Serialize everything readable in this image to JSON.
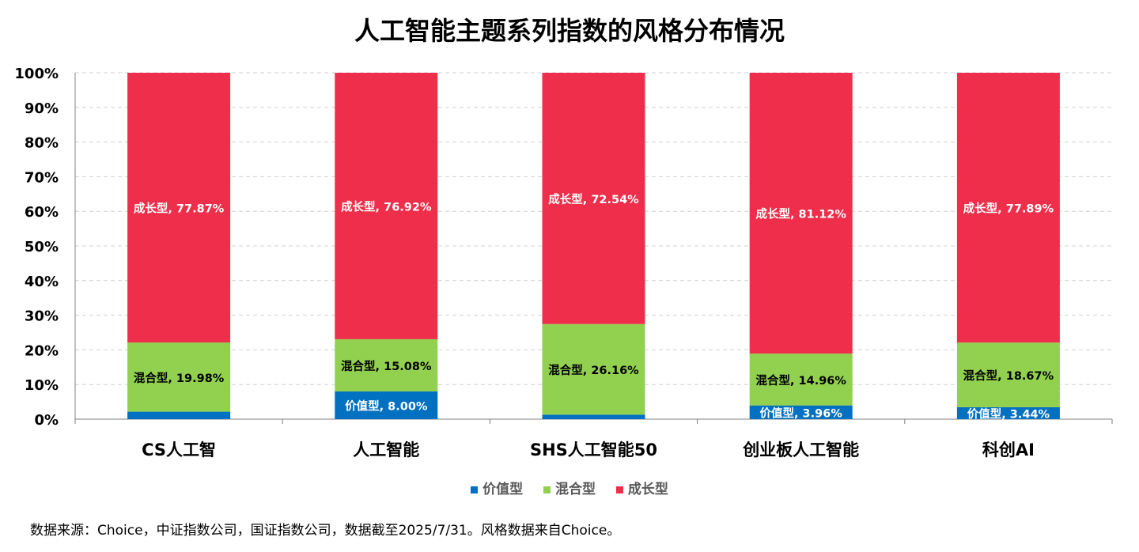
{
  "chart_data": {
    "type": "bar",
    "stacked": true,
    "title": "人工智能主题系列指数的风格分布情况",
    "categories": [
      "CS人工智",
      "人工智能",
      "SHS人工智能50",
      "创业板人工智能",
      "科创AI"
    ],
    "series": [
      {
        "name": "价值型",
        "color": "#0070C0",
        "values": [
          2.15,
          8.0,
          1.3,
          3.96,
          3.44
        ],
        "labels": [
          "",
          "价值型, 8.00%",
          "",
          "价值型, 3.96%",
          "价值型, 3.44%"
        ]
      },
      {
        "name": "混合型",
        "color": "#92D050",
        "values": [
          19.98,
          15.08,
          26.16,
          14.96,
          18.67
        ],
        "labels": [
          "混合型, 19.98%",
          "混合型, 15.08%",
          "混合型, 26.16%",
          "混合型, 14.96%",
          "混合型, 18.67%"
        ]
      },
      {
        "name": "成长型",
        "color": "#EE2E4A",
        "values": [
          77.87,
          76.92,
          72.54,
          81.12,
          77.89
        ],
        "labels": [
          "成长型, 77.87%",
          "成长型, 76.92%",
          "成长型, 72.54%",
          "成长型, 81.12%",
          "成长型, 77.89%"
        ]
      }
    ],
    "yticks": [
      "0%",
      "10%",
      "20%",
      "30%",
      "40%",
      "50%",
      "60%",
      "70%",
      "80%",
      "90%",
      "100%"
    ],
    "ylim": [
      0,
      100
    ],
    "grid": true,
    "legend": "bottom-center"
  },
  "legend": {
    "value_label": "价值型",
    "mixed_label": "混合型",
    "growth_label": "成长型"
  },
  "footnote": "数据来源：Choice，中证指数公司，国证指数公司，数据截至2025/7/31。风格数据来自Choice。"
}
